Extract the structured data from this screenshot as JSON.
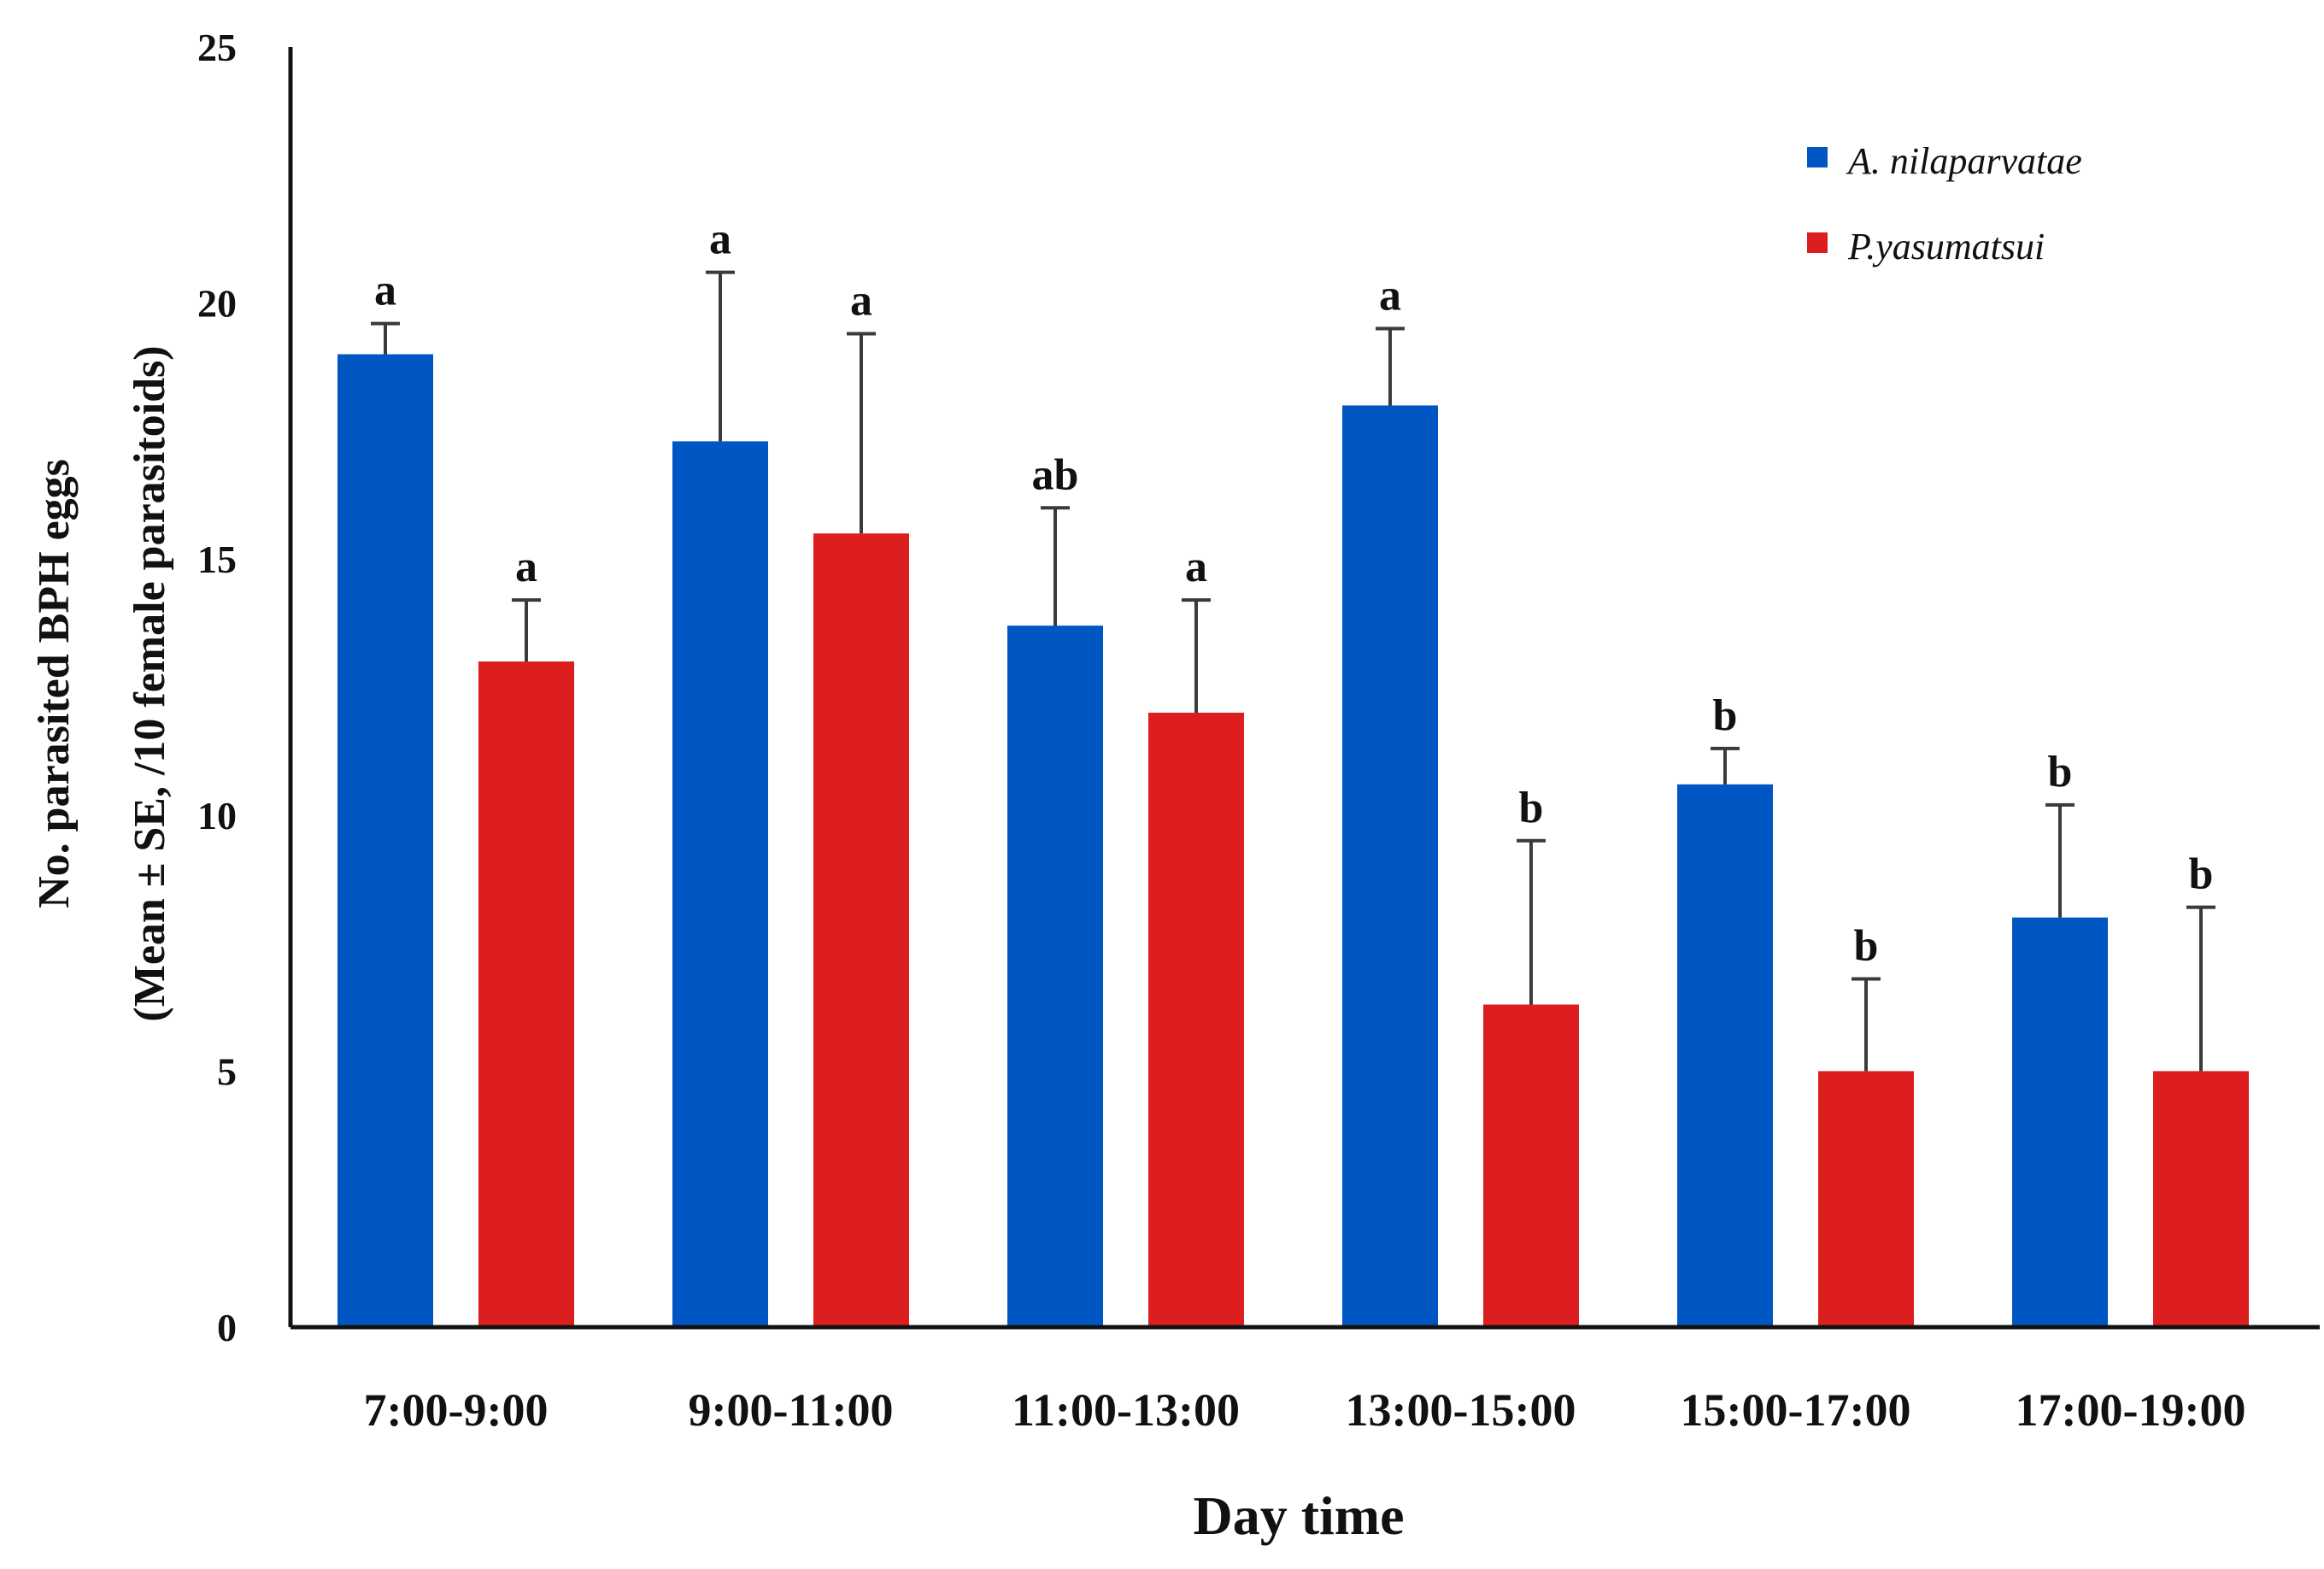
{
  "chart_data": {
    "type": "bar",
    "title": "",
    "xlabel": "Day time",
    "ylabel_line1": "No. parasited BPH eggs",
    "ylabel_line2": "(Mean ± SE, /10 female parasitoids)",
    "ylim": [
      0,
      25
    ],
    "yticks": [
      "0",
      "5",
      "10",
      "15",
      "20",
      "25"
    ],
    "ytick_values": [
      0,
      5,
      10,
      15,
      20,
      25
    ],
    "categories": [
      "7:00-9:00",
      "9:00-11:00",
      "11:00-13:00",
      "13:00-15:00",
      "15:00-17:00",
      "17:00-19:00"
    ],
    "legend_position": "top-right",
    "series": [
      {
        "name": "A. nilaparvatae",
        "color": "#0057c4",
        "values": [
          19.0,
          17.3,
          13.7,
          18.0,
          10.6,
          8.0
        ],
        "errors": [
          0.6,
          3.3,
          2.3,
          1.5,
          0.7,
          2.2
        ],
        "letters": [
          "a",
          "a",
          "ab",
          "a",
          "b",
          "b"
        ]
      },
      {
        "name": "P.yasumatsui",
        "color": "#dd1e1e",
        "values": [
          13.0,
          15.5,
          12.0,
          6.3,
          5.0,
          5.0
        ],
        "errors": [
          1.2,
          3.9,
          2.2,
          3.2,
          1.8,
          3.2
        ],
        "letters": [
          "a",
          "a",
          "a",
          "b",
          "b",
          "b"
        ]
      }
    ]
  }
}
